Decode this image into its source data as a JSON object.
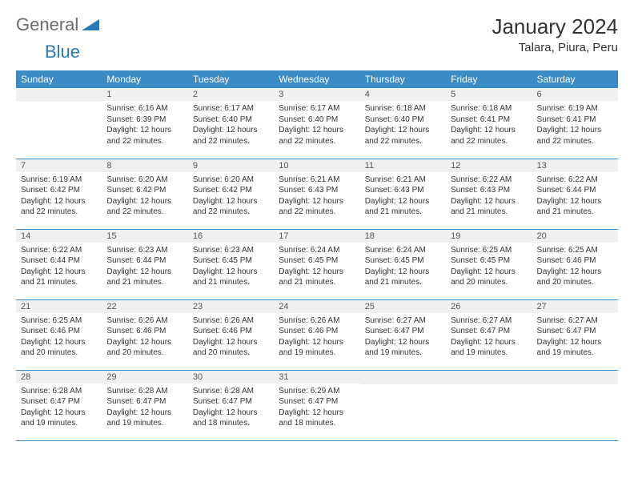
{
  "logo": {
    "general": "General",
    "blue": "Blue"
  },
  "title": "January 2024",
  "location": "Talara, Piura, Peru",
  "colors": {
    "header_bg": "#3b8bc5",
    "header_text": "#ffffff",
    "daynum_bg": "#eef0f1",
    "border": "#3b8bc5",
    "logo_gray": "#6b6b6b",
    "logo_blue": "#2a7ab8"
  },
  "weekdays": [
    "Sunday",
    "Monday",
    "Tuesday",
    "Wednesday",
    "Thursday",
    "Friday",
    "Saturday"
  ],
  "weeks": [
    [
      {
        "n": "",
        "lines": []
      },
      {
        "n": "1",
        "lines": [
          "Sunrise: 6:16 AM",
          "Sunset: 6:39 PM",
          "Daylight: 12 hours and 22 minutes."
        ]
      },
      {
        "n": "2",
        "lines": [
          "Sunrise: 6:17 AM",
          "Sunset: 6:40 PM",
          "Daylight: 12 hours and 22 minutes."
        ]
      },
      {
        "n": "3",
        "lines": [
          "Sunrise: 6:17 AM",
          "Sunset: 6:40 PM",
          "Daylight: 12 hours and 22 minutes."
        ]
      },
      {
        "n": "4",
        "lines": [
          "Sunrise: 6:18 AM",
          "Sunset: 6:40 PM",
          "Daylight: 12 hours and 22 minutes."
        ]
      },
      {
        "n": "5",
        "lines": [
          "Sunrise: 6:18 AM",
          "Sunset: 6:41 PM",
          "Daylight: 12 hours and 22 minutes."
        ]
      },
      {
        "n": "6",
        "lines": [
          "Sunrise: 6:19 AM",
          "Sunset: 6:41 PM",
          "Daylight: 12 hours and 22 minutes."
        ]
      }
    ],
    [
      {
        "n": "7",
        "lines": [
          "Sunrise: 6:19 AM",
          "Sunset: 6:42 PM",
          "Daylight: 12 hours and 22 minutes."
        ]
      },
      {
        "n": "8",
        "lines": [
          "Sunrise: 6:20 AM",
          "Sunset: 6:42 PM",
          "Daylight: 12 hours and 22 minutes."
        ]
      },
      {
        "n": "9",
        "lines": [
          "Sunrise: 6:20 AM",
          "Sunset: 6:42 PM",
          "Daylight: 12 hours and 22 minutes."
        ]
      },
      {
        "n": "10",
        "lines": [
          "Sunrise: 6:21 AM",
          "Sunset: 6:43 PM",
          "Daylight: 12 hours and 22 minutes."
        ]
      },
      {
        "n": "11",
        "lines": [
          "Sunrise: 6:21 AM",
          "Sunset: 6:43 PM",
          "Daylight: 12 hours and 21 minutes."
        ]
      },
      {
        "n": "12",
        "lines": [
          "Sunrise: 6:22 AM",
          "Sunset: 6:43 PM",
          "Daylight: 12 hours and 21 minutes."
        ]
      },
      {
        "n": "13",
        "lines": [
          "Sunrise: 6:22 AM",
          "Sunset: 6:44 PM",
          "Daylight: 12 hours and 21 minutes."
        ]
      }
    ],
    [
      {
        "n": "14",
        "lines": [
          "Sunrise: 6:22 AM",
          "Sunset: 6:44 PM",
          "Daylight: 12 hours and 21 minutes."
        ]
      },
      {
        "n": "15",
        "lines": [
          "Sunrise: 6:23 AM",
          "Sunset: 6:44 PM",
          "Daylight: 12 hours and 21 minutes."
        ]
      },
      {
        "n": "16",
        "lines": [
          "Sunrise: 6:23 AM",
          "Sunset: 6:45 PM",
          "Daylight: 12 hours and 21 minutes."
        ]
      },
      {
        "n": "17",
        "lines": [
          "Sunrise: 6:24 AM",
          "Sunset: 6:45 PM",
          "Daylight: 12 hours and 21 minutes."
        ]
      },
      {
        "n": "18",
        "lines": [
          "Sunrise: 6:24 AM",
          "Sunset: 6:45 PM",
          "Daylight: 12 hours and 21 minutes."
        ]
      },
      {
        "n": "19",
        "lines": [
          "Sunrise: 6:25 AM",
          "Sunset: 6:45 PM",
          "Daylight: 12 hours and 20 minutes."
        ]
      },
      {
        "n": "20",
        "lines": [
          "Sunrise: 6:25 AM",
          "Sunset: 6:46 PM",
          "Daylight: 12 hours and 20 minutes."
        ]
      }
    ],
    [
      {
        "n": "21",
        "lines": [
          "Sunrise: 6:25 AM",
          "Sunset: 6:46 PM",
          "Daylight: 12 hours and 20 minutes."
        ]
      },
      {
        "n": "22",
        "lines": [
          "Sunrise: 6:26 AM",
          "Sunset: 6:46 PM",
          "Daylight: 12 hours and 20 minutes."
        ]
      },
      {
        "n": "23",
        "lines": [
          "Sunrise: 6:26 AM",
          "Sunset: 6:46 PM",
          "Daylight: 12 hours and 20 minutes."
        ]
      },
      {
        "n": "24",
        "lines": [
          "Sunrise: 6:26 AM",
          "Sunset: 6:46 PM",
          "Daylight: 12 hours and 19 minutes."
        ]
      },
      {
        "n": "25",
        "lines": [
          "Sunrise: 6:27 AM",
          "Sunset: 6:47 PM",
          "Daylight: 12 hours and 19 minutes."
        ]
      },
      {
        "n": "26",
        "lines": [
          "Sunrise: 6:27 AM",
          "Sunset: 6:47 PM",
          "Daylight: 12 hours and 19 minutes."
        ]
      },
      {
        "n": "27",
        "lines": [
          "Sunrise: 6:27 AM",
          "Sunset: 6:47 PM",
          "Daylight: 12 hours and 19 minutes."
        ]
      }
    ],
    [
      {
        "n": "28",
        "lines": [
          "Sunrise: 6:28 AM",
          "Sunset: 6:47 PM",
          "Daylight: 12 hours and 19 minutes."
        ]
      },
      {
        "n": "29",
        "lines": [
          "Sunrise: 6:28 AM",
          "Sunset: 6:47 PM",
          "Daylight: 12 hours and 19 minutes."
        ]
      },
      {
        "n": "30",
        "lines": [
          "Sunrise: 6:28 AM",
          "Sunset: 6:47 PM",
          "Daylight: 12 hours and 18 minutes."
        ]
      },
      {
        "n": "31",
        "lines": [
          "Sunrise: 6:29 AM",
          "Sunset: 6:47 PM",
          "Daylight: 12 hours and 18 minutes."
        ]
      },
      {
        "n": "",
        "lines": []
      },
      {
        "n": "",
        "lines": []
      },
      {
        "n": "",
        "lines": []
      }
    ]
  ]
}
